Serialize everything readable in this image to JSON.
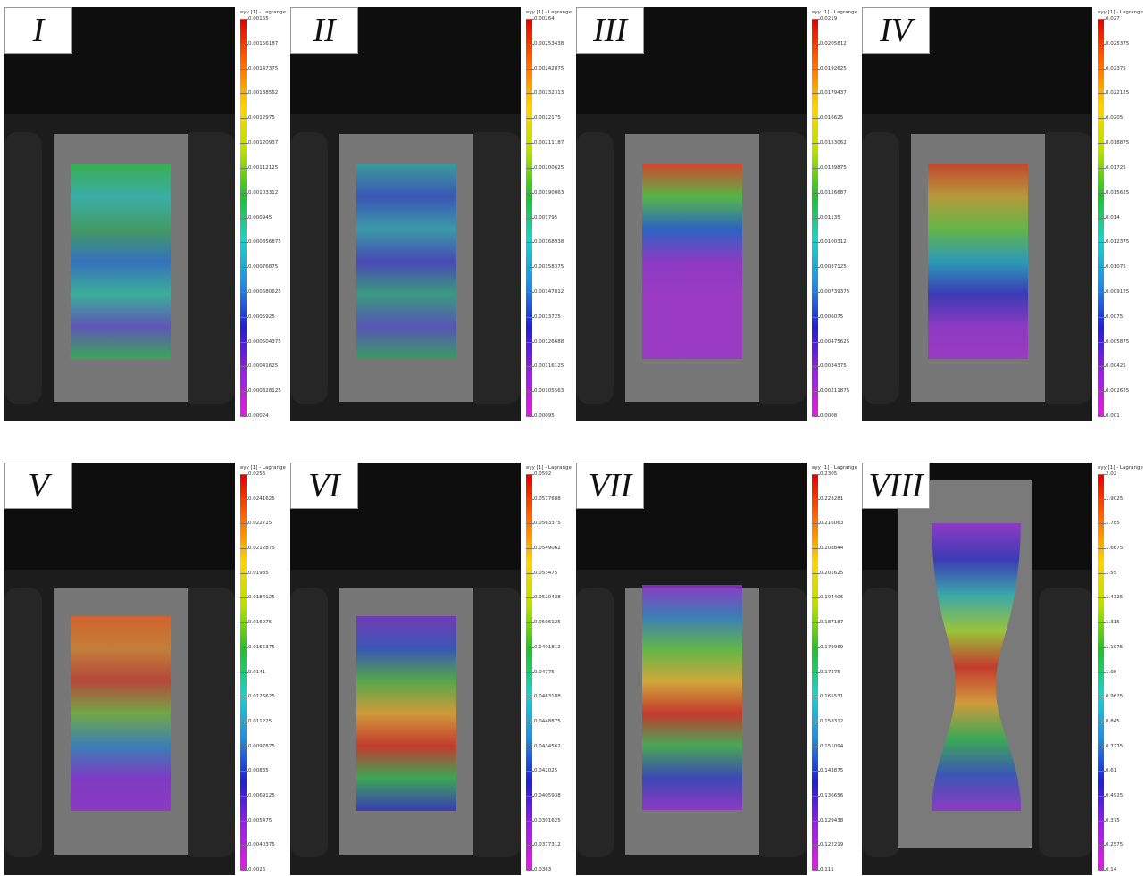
{
  "panels": [
    {
      "label": "I",
      "legend_title": "eyy [1] - Lagrange",
      "ticks": [
        "0.00165",
        "0.00156187",
        "0.00147375",
        "0.00138562",
        "0.0012975",
        "0.00120937",
        "0.00112125",
        "0.00103312",
        "0.000945",
        "0.000856875",
        "0.00076875",
        "0.000680625",
        "0.0005925",
        "0.000504375",
        "0.00041625",
        "0.000328125",
        "0.00024"
      ]
    },
    {
      "label": "II",
      "legend_title": "eyy [1] - Lagrange",
      "ticks": [
        "0.00264",
        "0.00253438",
        "0.00242875",
        "0.00232313",
        "0.0022175",
        "0.00211187",
        "0.00200625",
        "0.00190063",
        "0.001795",
        "0.00168938",
        "0.00158375",
        "0.00147812",
        "0.0013725",
        "0.00126688",
        "0.00116125",
        "0.00105563",
        "0.00095"
      ]
    },
    {
      "label": "III",
      "legend_title": "eyy [1] - Lagrange",
      "ticks": [
        "0.0219",
        "0.0205812",
        "0.0192625",
        "0.0179437",
        "0.016625",
        "0.0153062",
        "0.0139875",
        "0.0126687",
        "0.01135",
        "0.0100312",
        "0.0087125",
        "0.00739375",
        "0.006075",
        "0.00475625",
        "0.0034375",
        "0.00211875",
        "0.0008"
      ]
    },
    {
      "label": "IV",
      "legend_title": "eyy [1] - Lagrange",
      "ticks": [
        "0.027",
        "0.025375",
        "0.02375",
        "0.022125",
        "0.0205",
        "0.018875",
        "0.01725",
        "0.015625",
        "0.014",
        "0.012375",
        "0.01075",
        "0.009125",
        "0.0075",
        "0.005875",
        "0.00425",
        "0.002625",
        "0.001"
      ]
    },
    {
      "label": "V",
      "legend_title": "eyy [1] - Lagrange",
      "ticks": [
        "0.0256",
        "0.0241625",
        "0.022725",
        "0.0212875",
        "0.01985",
        "0.0184125",
        "0.016975",
        "0.0155375",
        "0.0141",
        "0.0126625",
        "0.011225",
        "0.0097875",
        "0.00835",
        "0.0069125",
        "0.005475",
        "0.0040375",
        "0.0026"
      ]
    },
    {
      "label": "VI",
      "legend_title": "eyy [1] - Lagrange",
      "ticks": [
        "0.0592",
        "0.0577688",
        "0.0563375",
        "0.0549062",
        "0.053475",
        "0.0520438",
        "0.0506125",
        "0.0491812",
        "0.04775",
        "0.0463188",
        "0.0448875",
        "0.0434562",
        "0.042025",
        "0.0405938",
        "0.0391625",
        "0.0377312",
        "0.0363"
      ]
    },
    {
      "label": "VII",
      "legend_title": "eyy [1] - Lagrange",
      "ticks": [
        "0.2305",
        "0.223281",
        "0.216063",
        "0.208844",
        "0.201625",
        "0.194406",
        "0.187187",
        "0.179969",
        "0.17275",
        "0.165531",
        "0.158312",
        "0.151094",
        "0.143875",
        "0.136656",
        "0.129438",
        "0.122219",
        "0.115"
      ]
    },
    {
      "label": "VIII",
      "legend_title": "eyy [1] - Lagrange",
      "ticks": [
        "2.02",
        "1.9025",
        "1.785",
        "1.6675",
        "1.55",
        "1.4325",
        "1.315",
        "1.1975",
        "1.08",
        "0.9625",
        "0.845",
        "0.7275",
        "0.61",
        "0.4925",
        "0.375",
        "0.2575",
        "0.14"
      ]
    }
  ]
}
